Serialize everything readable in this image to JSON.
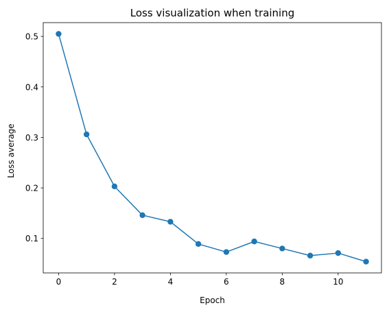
{
  "chart_data": {
    "type": "line",
    "title": "Loss visualization when training",
    "xlabel": "Epoch",
    "ylabel": "Loss average",
    "x": [
      0,
      1,
      2,
      3,
      4,
      5,
      6,
      7,
      8,
      9,
      10,
      11
    ],
    "series": [
      {
        "values": [
          0.505,
          0.306,
          0.203,
          0.146,
          0.133,
          0.089,
          0.073,
          0.094,
          0.08,
          0.066,
          0.071,
          0.054
        ],
        "color": "#1f77b4",
        "marker": "circle"
      }
    ],
    "xlim": [
      -0.55,
      11.55
    ],
    "ylim": [
      0.0317,
      0.5273
    ],
    "xticks": [
      0,
      2,
      4,
      6,
      8,
      10
    ],
    "yticks": [
      0.1,
      0.2,
      0.3,
      0.4,
      0.5
    ],
    "xtick_labels": [
      "0",
      "2",
      "4",
      "6",
      "8",
      "10"
    ],
    "ytick_labels": [
      "0.1",
      "0.2",
      "0.3",
      "0.4",
      "0.5"
    ],
    "grid": false,
    "legend": "none"
  }
}
